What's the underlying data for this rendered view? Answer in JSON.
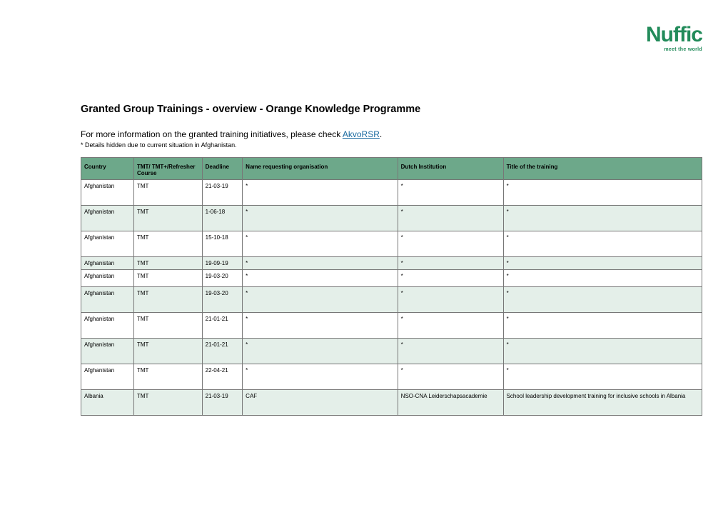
{
  "logo": {
    "word": "Nuffic",
    "tagline": "meet the world"
  },
  "title": "Granted Group Trainings - overview -  Orange Knowledge Programme",
  "intro_prefix": "For more information on the granted training initiatives, please check ",
  "intro_link_text": "AkvoRSR",
  "intro_suffix": ".",
  "footnote": "* Details hidden due to current situation in Afghanistan.",
  "columns": [
    "Country",
    "TMT/ TMT+/Refresher Course",
    "Deadline",
    "Name requesting organisation",
    "Dutch Institution",
    "Title of the training"
  ],
  "rows": [
    {
      "alt": false,
      "h": "tall",
      "cells": [
        "Afghanistan",
        "TMT",
        "21-03-19",
        "*",
        "*",
        "*"
      ]
    },
    {
      "alt": true,
      "h": "tall",
      "cells": [
        "Afghanistan",
        "TMT",
        "1-06-18",
        "*",
        "*",
        "*"
      ]
    },
    {
      "alt": false,
      "h": "tall",
      "cells": [
        "Afghanistan",
        "TMT",
        "15-10-18",
        "*",
        "*",
        "*"
      ]
    },
    {
      "alt": true,
      "h": "short",
      "cells": [
        "Afghanistan",
        "TMT",
        "19-09-19",
        "*",
        "*",
        "*"
      ]
    },
    {
      "alt": false,
      "h": "med",
      "cells": [
        "Afghanistan",
        "TMT",
        "19-03-20",
        "*",
        "*",
        "*"
      ]
    },
    {
      "alt": true,
      "h": "tall",
      "cells": [
        "Afghanistan",
        "TMT",
        "19-03-20",
        "*",
        "*",
        "*"
      ]
    },
    {
      "alt": false,
      "h": "tall",
      "cells": [
        "Afghanistan",
        "TMT",
        "21-01-21",
        "*",
        "*",
        "*"
      ]
    },
    {
      "alt": true,
      "h": "tall",
      "cells": [
        "Afghanistan",
        "TMT",
        "21-01-21",
        "*",
        "*",
        "*"
      ]
    },
    {
      "alt": false,
      "h": "tall",
      "cells": [
        "Afghanistan",
        "TMT",
        "22-04-21",
        "*",
        "*",
        "*"
      ]
    },
    {
      "alt": true,
      "h": "tall",
      "cells": [
        "Albania",
        "TMT",
        "21-03-19",
        "CAF",
        "NSO-CNA Leiderschapsacademie",
        "School leadership development training for inclusive schools in Albania"
      ]
    }
  ]
}
